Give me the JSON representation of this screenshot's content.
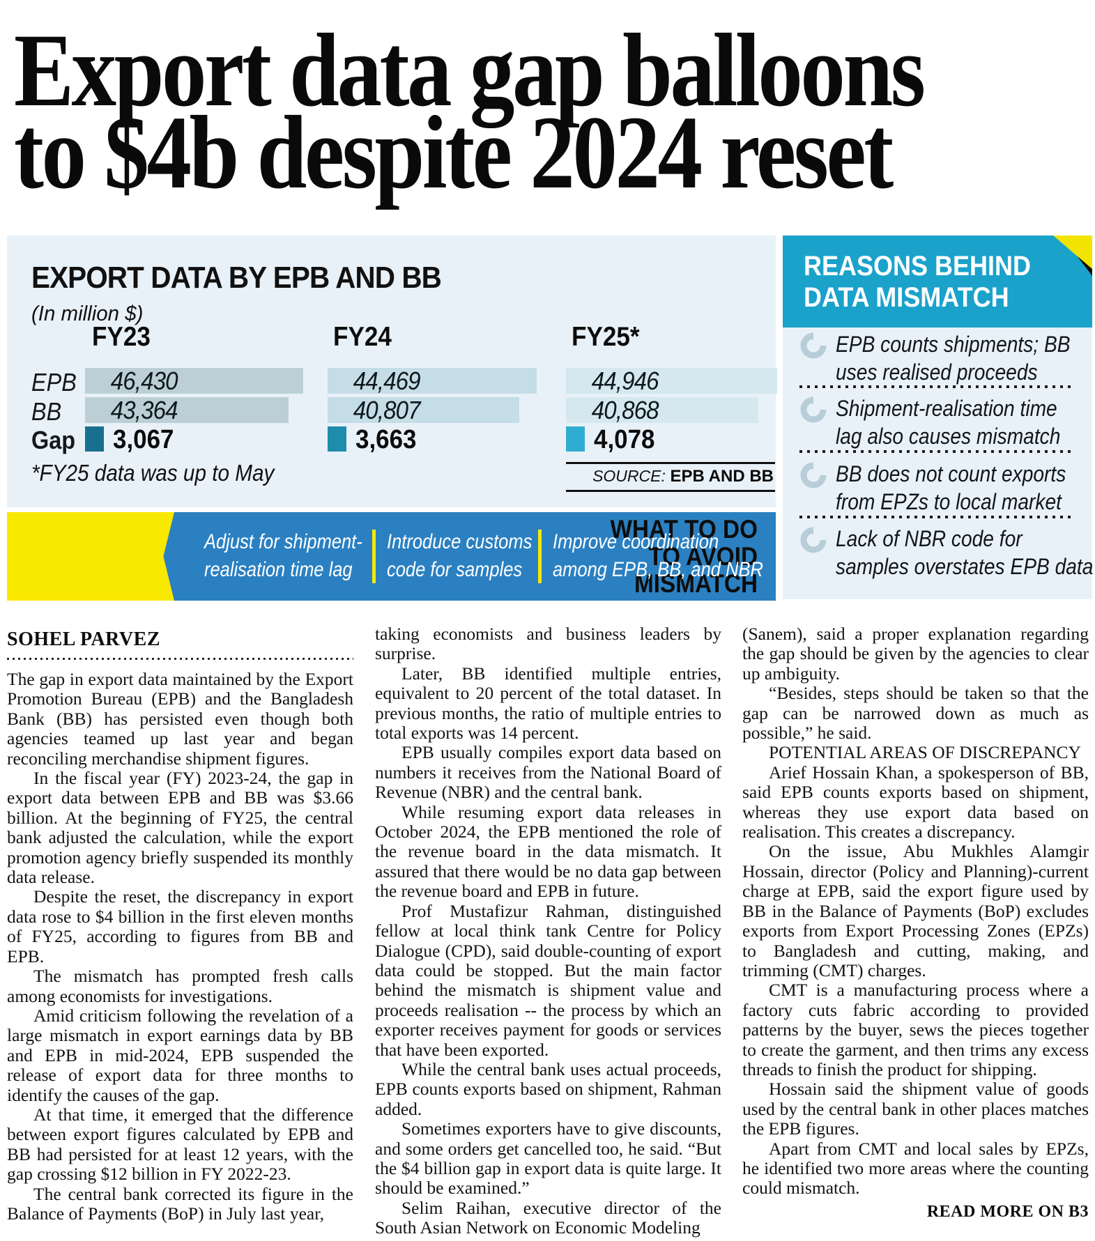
{
  "headline": {
    "line1": "Export data gap balloons",
    "line2": "to $4b despite 2024 reset"
  },
  "infographic": {
    "title": "EXPORT DATA BY EPB AND BB",
    "subtitle": "(In million $)",
    "row_labels": {
      "epb": "EPB",
      "bb": "BB",
      "gap": "Gap"
    },
    "columns": [
      {
        "year": "FY23",
        "epb": "46,430",
        "bb": "43,364",
        "gap": "3,067"
      },
      {
        "year": "FY24",
        "epb": "44,469",
        "bb": "40,807",
        "gap": "3,663"
      },
      {
        "year": "FY25*",
        "epb": "44,946",
        "bb": "40,868",
        "gap": "4,078"
      }
    ],
    "footnote": "*FY25 data was up to May",
    "source_label": "SOURCE:",
    "source_value": " EPB AND BB",
    "colors": {
      "panel_bg": "#e9f1f8",
      "fy23_bar": "#bccfd6",
      "fy24_bar": "#c4dde7",
      "fy25_bar": "#d5e8ef",
      "gap_fy23": "#17708f",
      "gap_fy24": "#1f8cab",
      "gap_fy25": "#2fadd1"
    }
  },
  "chart_data": {
    "type": "bar",
    "title": "EXPORT DATA BY EPB AND BB",
    "unit": "In million $",
    "categories": [
      "FY23",
      "FY24",
      "FY25*"
    ],
    "series": [
      {
        "name": "EPB",
        "values": [
          46430,
          44469,
          44946
        ]
      },
      {
        "name": "BB",
        "values": [
          43364,
          40807,
          40868
        ]
      },
      {
        "name": "Gap",
        "values": [
          3067,
          3663,
          4078
        ]
      }
    ],
    "footnote": "*FY25 data was up to May",
    "source": "EPB AND BB",
    "orientation": "horizontal",
    "grid": false,
    "legend_position": "left-row-labels"
  },
  "actions_panel": {
    "label_line1": "WHAT TO DO",
    "label_line2": "TO AVOID",
    "label_line3": "MISMATCH",
    "items": [
      {
        "line1": "Adjust for shipment-",
        "line2": "realisation time lag"
      },
      {
        "line1": "Introduce customs",
        "line2": "code for samples"
      },
      {
        "line1": "Improve coordination",
        "line2": "among EPB, BB, and NBR"
      }
    ],
    "colors": {
      "bar_bg": "#2b80c1",
      "label_bg": "#f9e800",
      "separator": "#f9e800"
    }
  },
  "reasons_panel": {
    "title_line1": "REASONS BEHIND",
    "title_line2": "DATA MISMATCH",
    "items": [
      {
        "line1": "EPB counts shipments; BB",
        "line2": "uses realised proceeds"
      },
      {
        "line1": "Shipment-realisation time",
        "line2": "lag also causes mismatch"
      },
      {
        "line1": "BB does not count exports",
        "line2": "from EPZs to local market"
      },
      {
        "line1": "Lack of NBR code for",
        "line2": "samples overstates EPB data"
      }
    ],
    "colors": {
      "panel_bg": "#e9f1f8",
      "header_bg": "#1aa2cb",
      "icon": "#b7ced9"
    }
  },
  "article": {
    "byline": "SOHEL PARVEZ",
    "col1": [
      "The gap in export data maintained by the Export Promotion Bureau (EPB) and the Bangladesh Bank (BB) has persisted even though both agencies teamed up last year and began reconciling merchandise shipment figures.",
      "In the fiscal year (FY) 2023-24, the gap in export data between EPB and BB was $3.66 billion. At the beginning of FY25, the central bank adjusted the calculation, while the export promotion agency briefly suspended its monthly data release.",
      "Despite the reset, the discrepancy in export data rose to $4 billion in the first eleven months of FY25, according to figures from BB and EPB.",
      "The mismatch has prompted fresh calls among economists for investigations.",
      "Amid criticism following the revelation of a large mismatch in export earnings data by BB and EPB in mid-2024, EPB suspended the release of export data for three months to identify the causes of the gap.",
      "At that time, it emerged that the difference between export figures calculated by EPB and BB had persisted for at least 12 years, with the gap crossing $12 billion in FY 2022-23.",
      "The central bank corrected its figure in the Balance of Payments (BoP) in July last year,"
    ],
    "col2": [
      "taking economists and business leaders by surprise.",
      "Later, BB identified multiple entries, equivalent to 20 percent of the total dataset. In previous months, the ratio of multiple entries to total exports was 14 percent.",
      "EPB usually compiles export data based on numbers it receives from the National Board of Revenue (NBR) and the central bank.",
      "While resuming export data releases in October 2024, the EPB mentioned the role of the revenue board in the data mismatch. It assured that there would be no data gap between the revenue board and EPB in future.",
      "Prof Mustafizur Rahman, distinguished fellow at local think tank Centre for Policy Dialogue (CPD), said double-counting of export data could be stopped. But the main factor behind the mismatch is shipment value and proceeds realisation -- the process by which an exporter receives payment for goods or services that have been exported.",
      "While the central bank uses actual proceeds, EPB counts exports based on shipment, Rahman added.",
      "Sometimes exporters have to give discounts, and some orders get cancelled too, he said. “But the $4 billion gap in export data is quite large. It should be examined.”",
      "Selim Raihan, executive director of the South Asian Network on Economic Modeling"
    ],
    "col3_before": [
      "(Sanem), said a proper explanation regarding the gap should be given by the agencies to clear up ambiguity.",
      "“Besides, steps should be taken so that the gap can be narrowed down as much as possible,” he said."
    ],
    "subhead": "POTENTIAL AREAS OF DISCREPANCY",
    "col3_after": [
      "Arief Hossain Khan, a spokesperson of BB, said EPB counts exports based on shipment, whereas they use export data based on realisation. This creates a discrepancy.",
      "On the issue, Abu Mukhles Alamgir Hossain, director (Policy and Planning)-current charge at EPB, said the export figure used by BB in the Balance of Payments (BoP) excludes exports from Export Processing Zones (EPZs) to Bangladesh and cutting, making, and trimming (CMT) charges.",
      "CMT is a manufacturing process where a factory cuts fabric according to provided patterns by the buyer, sews the pieces together to create the garment, and then trims any excess threads to finish the product for shipping.",
      "Hossain said the shipment value of goods used by the central bank in other places matches the EPB figures.",
      "Apart from CMT and local sales by EPZs, he identified two more areas where the counting could mismatch."
    ],
    "read_more": "READ MORE ON B3"
  }
}
